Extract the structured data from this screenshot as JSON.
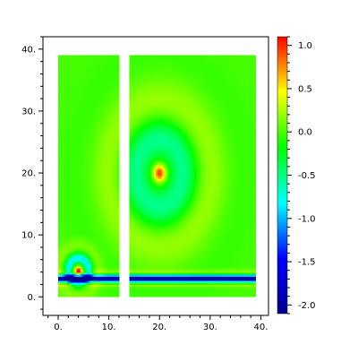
{
  "chart_data": {
    "type": "heatmap",
    "title": "",
    "xlabel": "",
    "ylabel": "",
    "xlim": [
      -3,
      41.5
    ],
    "ylim": [
      -3,
      42
    ],
    "x_ticks": [
      {
        "value": 0,
        "label": "0."
      },
      {
        "value": 10,
        "label": "10."
      },
      {
        "value": 20,
        "label": "20."
      },
      {
        "value": 30,
        "label": "30."
      },
      {
        "value": 40,
        "label": "40."
      }
    ],
    "y_ticks": [
      {
        "value": 0,
        "label": "0."
      },
      {
        "value": 10,
        "label": "10."
      },
      {
        "value": 20,
        "label": "20."
      },
      {
        "value": 30,
        "label": "30."
      },
      {
        "value": 40,
        "label": "40."
      }
    ],
    "domain_blocks": [
      {
        "x0": 0,
        "x1": 12,
        "y0": 0,
        "y1": 39
      },
      {
        "x0": 14,
        "x1": 39,
        "y0": 0,
        "y1": 39
      }
    ],
    "features": [
      {
        "kind": "band",
        "y": 3,
        "value": -2.1
      },
      {
        "kind": "source",
        "x": 4,
        "y": 4.3,
        "value": 1.1
      },
      {
        "kind": "source",
        "x": 20,
        "y": 20,
        "value": 1.0
      }
    ],
    "background_value": 0,
    "colorbar": {
      "min": -2.1,
      "max": 1.1,
      "colors": [
        "#00008c",
        "#0000ff",
        "#00ffff",
        "#00ff00",
        "#ffff00",
        "#ff0000"
      ],
      "ticks": [
        {
          "value": 1.0,
          "label": "1.0"
        },
        {
          "value": 0.5,
          "label": "0.5"
        },
        {
          "value": 0.0,
          "label": "0.0"
        },
        {
          "value": -0.5,
          "label": "-0.5"
        },
        {
          "value": -1.0,
          "label": "-1.0"
        },
        {
          "value": -1.5,
          "label": "-1.5"
        },
        {
          "value": -2.0,
          "label": "-2.0"
        }
      ]
    }
  }
}
